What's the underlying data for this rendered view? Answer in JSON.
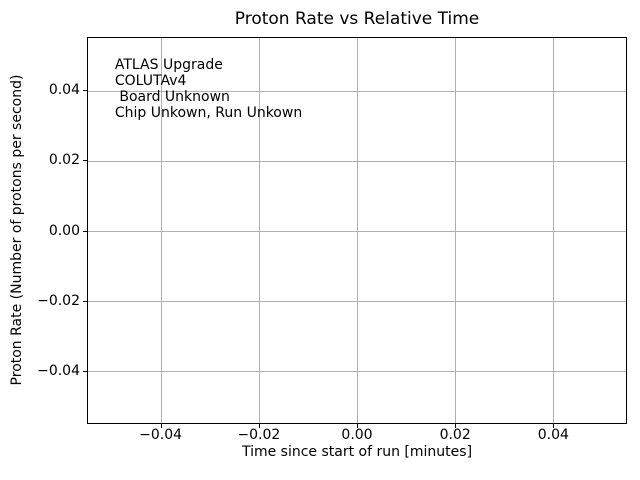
{
  "chart_data": {
    "type": "scatter",
    "title": "Proton Rate vs Relative Time",
    "xlabel": "Time since start of run [minutes]",
    "ylabel": "Proton Rate (Number of protons per second)",
    "xlim": [
      -0.055,
      0.055
    ],
    "ylim": [
      -0.055,
      0.055
    ],
    "grid": true,
    "legend": null,
    "series": [],
    "xticks": [
      {
        "value": -0.04,
        "label": "−0.04"
      },
      {
        "value": -0.02,
        "label": "−0.02"
      },
      {
        "value": 0.0,
        "label": "0.00"
      },
      {
        "value": 0.02,
        "label": "0.02"
      },
      {
        "value": 0.04,
        "label": "0.04"
      }
    ],
    "yticks": [
      {
        "value": 0.04,
        "label": "0.04"
      },
      {
        "value": 0.02,
        "label": "0.02"
      },
      {
        "value": 0.0,
        "label": "0.00"
      },
      {
        "value": -0.02,
        "label": "−0.02"
      },
      {
        "value": -0.04,
        "label": "−0.04"
      }
    ],
    "annotation": {
      "lines": [
        "ATLAS Upgrade",
        "COLUTAv4",
        " Board Unknown",
        "Chip Unkown, Run Unkown"
      ]
    },
    "colors": {
      "background": "#ffffff",
      "grid": "#b0b0b0",
      "spine": "#000000",
      "text": "#000000"
    }
  }
}
